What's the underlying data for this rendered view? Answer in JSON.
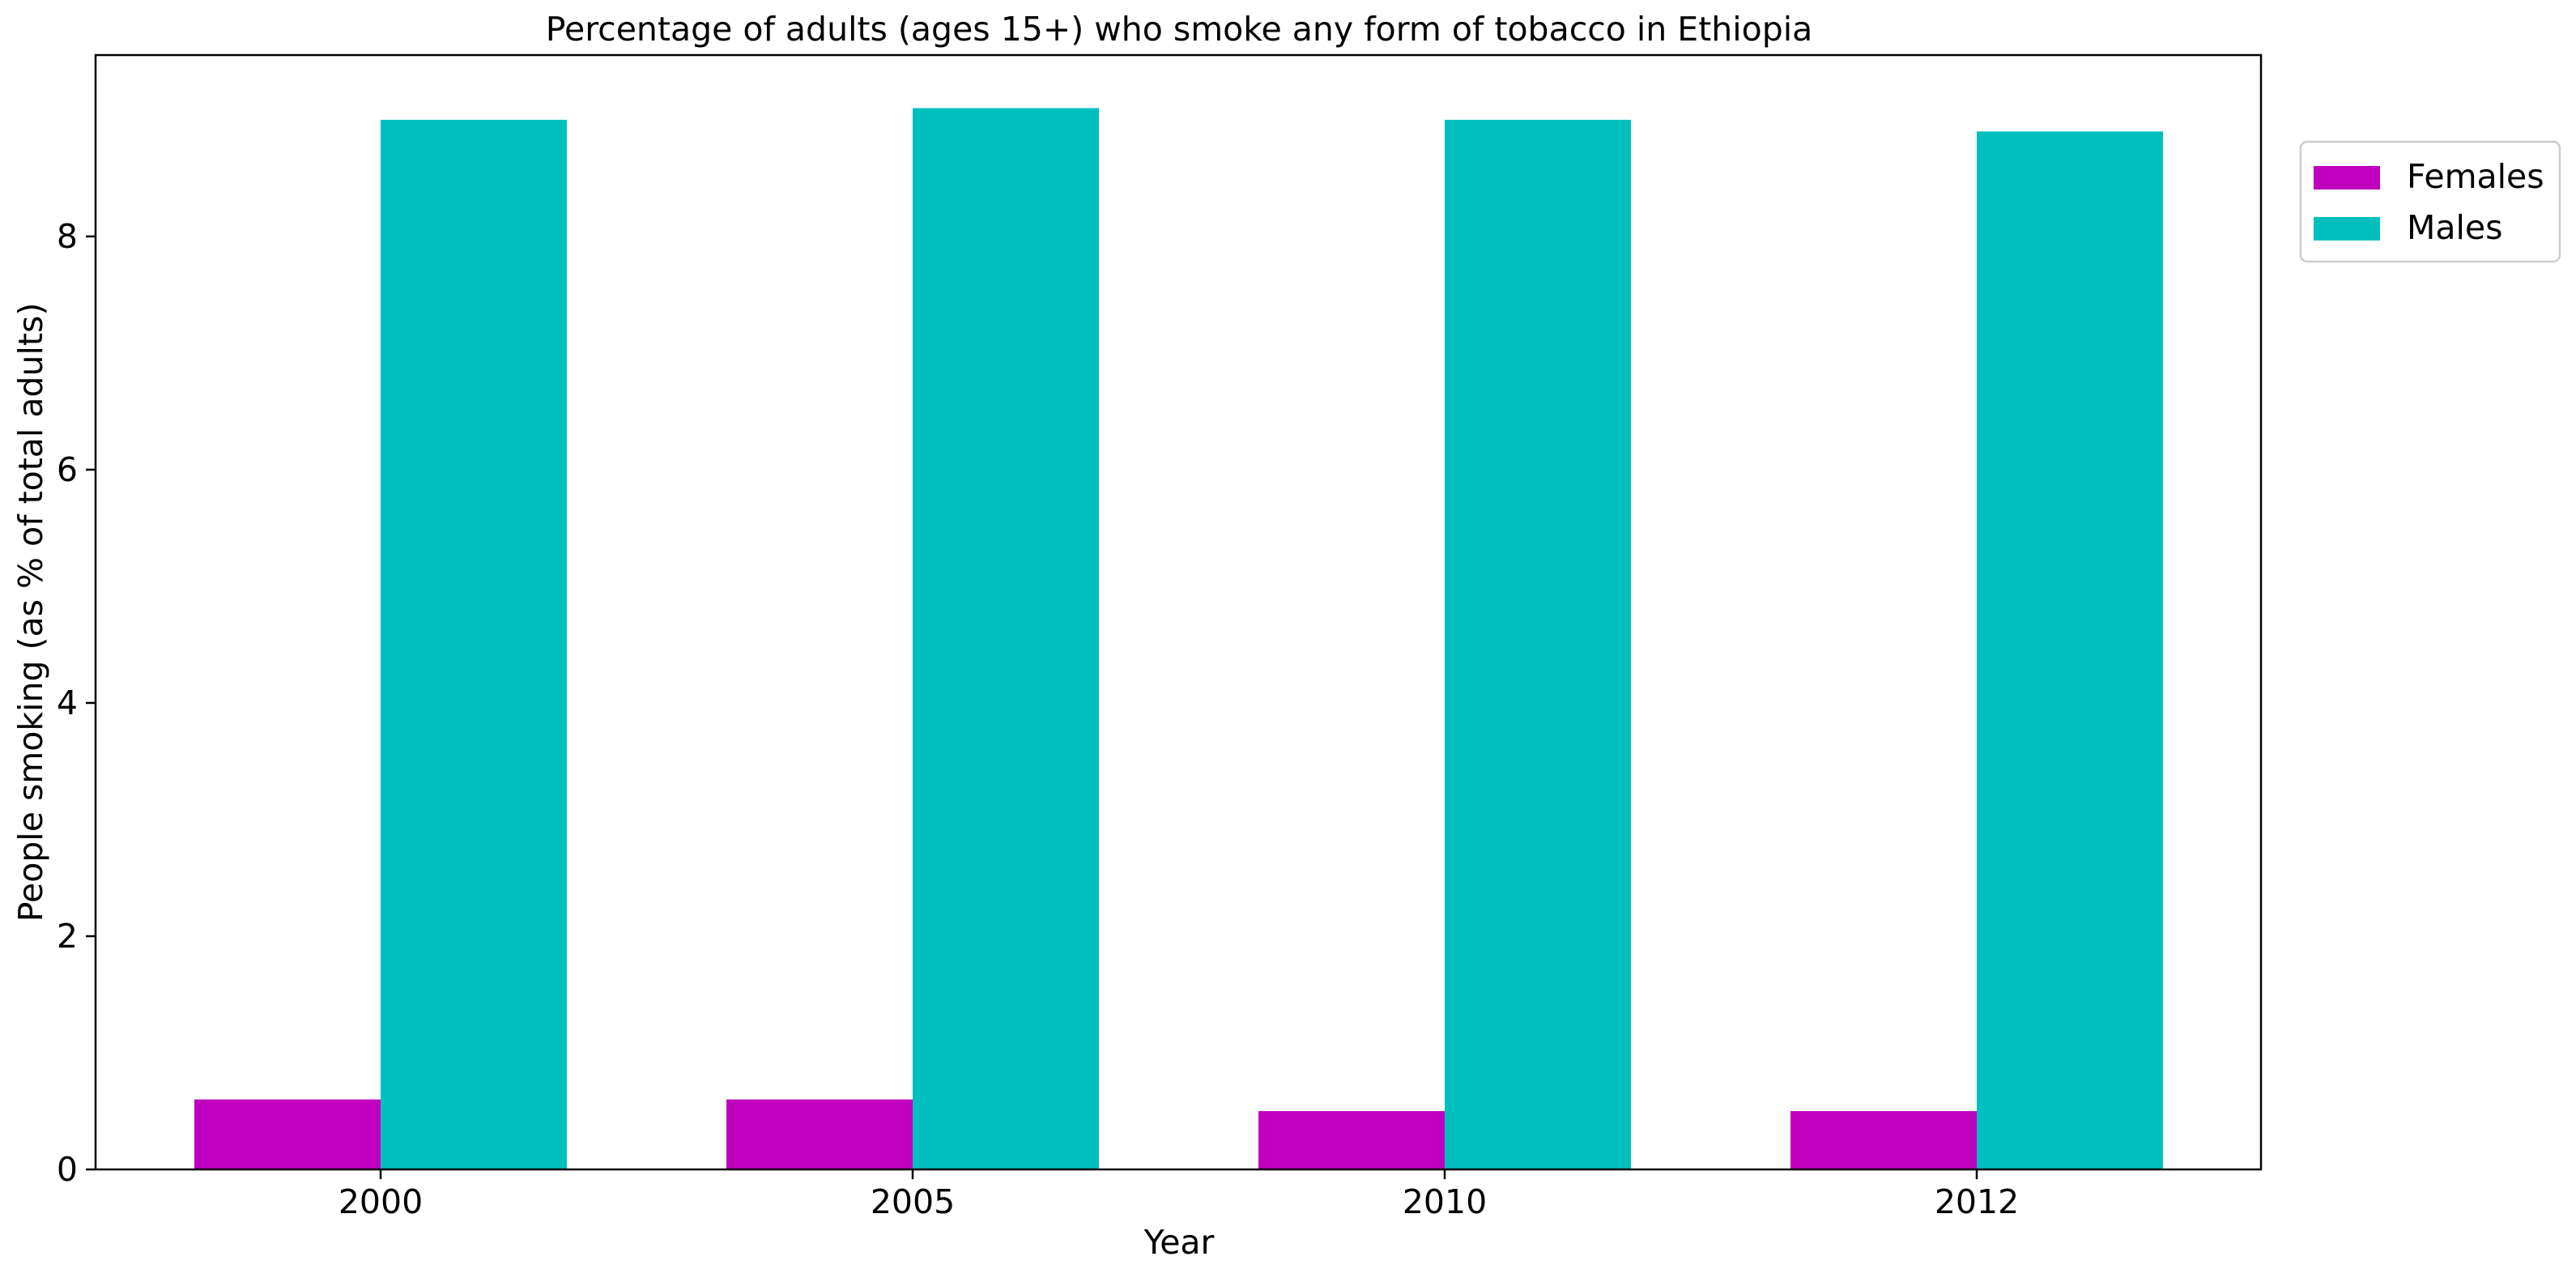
{
  "chart_data": {
    "type": "bar",
    "title": "Percentage of adults (ages 15+) who smoke any form of tobacco in Ethiopia",
    "xlabel": "Year",
    "ylabel": "People smoking (as % of total adults)",
    "categories": [
      "2000",
      "2005",
      "2010",
      "2012"
    ],
    "series": [
      {
        "name": "Females",
        "color": "#bf00bf",
        "values": [
          0.6,
          0.6,
          0.5,
          0.5
        ]
      },
      {
        "name": "Males",
        "color": "#00bfbf",
        "values": [
          9.0,
          9.1,
          9.0,
          8.9
        ]
      }
    ],
    "ylim": [
      0,
      9.555
    ],
    "yticks": [
      "0",
      "2",
      "4",
      "6",
      "8"
    ],
    "grid": false,
    "legend_position": "top-right (outside plot)"
  }
}
